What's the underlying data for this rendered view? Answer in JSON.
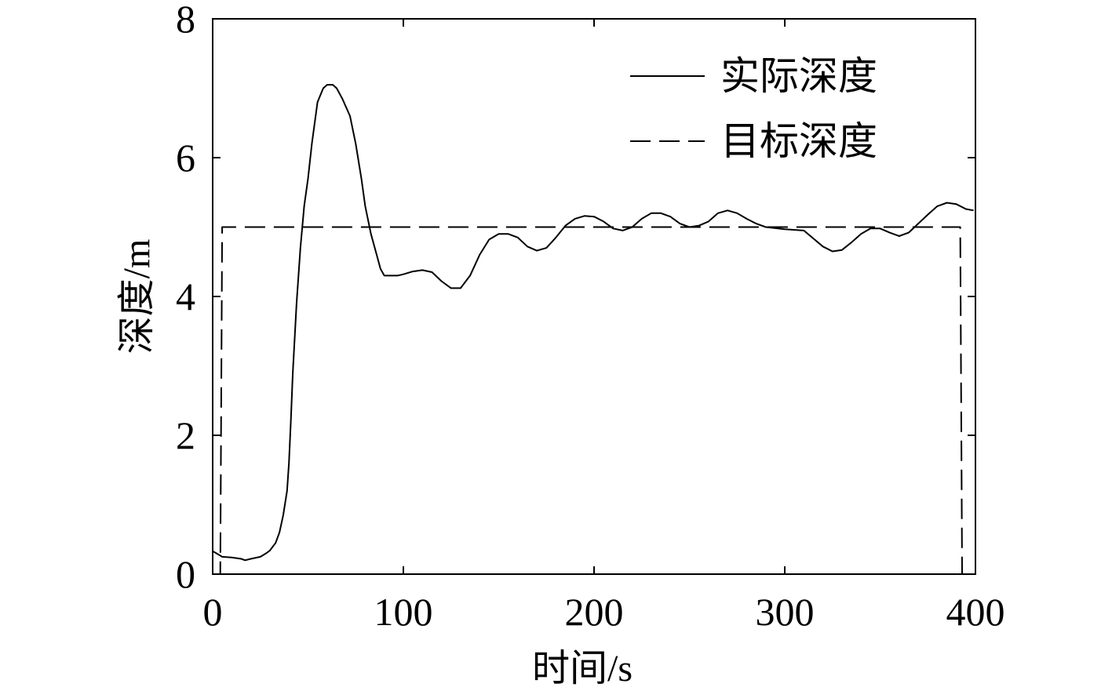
{
  "chart_data": {
    "type": "line",
    "title": "",
    "xlabel": "时间/s",
    "ylabel": "深度/m",
    "xlim": [
      0,
      400
    ],
    "ylim": [
      0,
      8
    ],
    "xticks": [
      0,
      100,
      200,
      300,
      400
    ],
    "yticks": [
      0,
      2,
      4,
      6,
      8
    ],
    "grid": false,
    "legend_position": "top-right",
    "series": [
      {
        "name": "实际深度",
        "style": "solid",
        "color": "#000000",
        "x": [
          0,
          2,
          5,
          10,
          15,
          17,
          20,
          25,
          28,
          30,
          33,
          35,
          37,
          39,
          40,
          41,
          42,
          44,
          46,
          48,
          50,
          52,
          55,
          58,
          60,
          63,
          65,
          68,
          72,
          75,
          78,
          80,
          83,
          86,
          88,
          90,
          93,
          97,
          100,
          105,
          110,
          115,
          120,
          125,
          130,
          135,
          140,
          145,
          150,
          155,
          160,
          165,
          170,
          175,
          180,
          185,
          190,
          195,
          200,
          205,
          210,
          215,
          220,
          225,
          230,
          235,
          240,
          245,
          250,
          255,
          260,
          265,
          270,
          275,
          280,
          285,
          290,
          300,
          310,
          320,
          325,
          330,
          335,
          340,
          345,
          350,
          355,
          360,
          365,
          370,
          375,
          380,
          385,
          390,
          395,
          399
        ],
        "y": [
          0.33,
          0.3,
          0.25,
          0.24,
          0.22,
          0.2,
          0.22,
          0.25,
          0.3,
          0.34,
          0.45,
          0.6,
          0.85,
          1.2,
          1.6,
          2.2,
          2.9,
          3.9,
          4.7,
          5.3,
          5.7,
          6.2,
          6.8,
          7.0,
          7.05,
          7.05,
          7.0,
          6.85,
          6.6,
          6.2,
          5.7,
          5.3,
          4.9,
          4.6,
          4.4,
          4.3,
          4.3,
          4.3,
          4.32,
          4.36,
          4.38,
          4.35,
          4.22,
          4.12,
          4.12,
          4.3,
          4.6,
          4.82,
          4.9,
          4.9,
          4.85,
          4.72,
          4.66,
          4.7,
          4.85,
          5.02,
          5.12,
          5.16,
          5.15,
          5.08,
          4.98,
          4.95,
          5.0,
          5.12,
          5.2,
          5.2,
          5.15,
          5.05,
          5.0,
          5.02,
          5.08,
          5.2,
          5.24,
          5.2,
          5.12,
          5.05,
          5.0,
          4.97,
          4.95,
          4.72,
          4.65,
          4.67,
          4.78,
          4.9,
          4.98,
          4.98,
          4.92,
          4.87,
          4.92,
          5.05,
          5.18,
          5.3,
          5.35,
          5.33,
          5.26,
          5.24
        ]
      },
      {
        "name": "目标深度",
        "style": "dashed",
        "color": "#000000",
        "x": [
          0,
          4,
          5,
          392,
          393,
          400
        ],
        "y": [
          0,
          0,
          5,
          5,
          0,
          0
        ]
      }
    ]
  }
}
